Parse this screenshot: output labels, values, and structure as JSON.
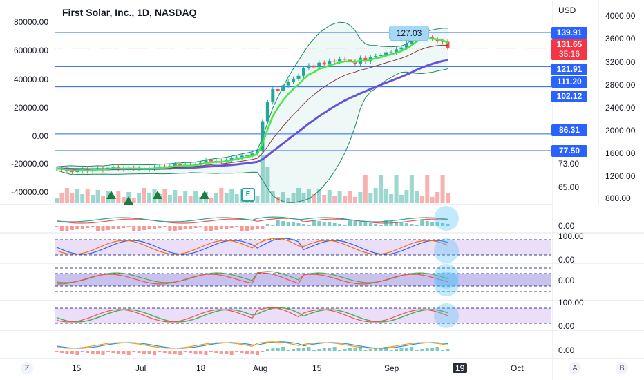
{
  "header": {
    "title": "First Solar, Inc., 1D, NASDAQ",
    "currency": "USD"
  },
  "axes": {
    "volume_axis": [
      "80000.00",
      "60000.00",
      "40000.00",
      "20000.00",
      "0.00",
      "-20000.00",
      "-40000.00"
    ],
    "secondary_axis": [
      "4000.00",
      "3600.00",
      "3200.00",
      "2800.00",
      "2400.00",
      "2000.00",
      "1600.00",
      "1200.00",
      "800.00"
    ],
    "indicator_labels": {
      "osc1_zero": "0.00",
      "stoch_top": "100.00",
      "stoch_zero": "0.00",
      "cci_zero": "0.00",
      "stoch2_top": "100.00",
      "stoch2_zero": "0.00",
      "macd_zero": "0.00",
      "rsi_73": "73.00",
      "rsi_65": "65.00"
    },
    "x_labels": [
      "15",
      "Jul",
      "18",
      "Aug",
      "15",
      "Sep",
      "19",
      "Oct"
    ]
  },
  "price_tags": [
    {
      "label": "139.91",
      "color": "blue"
    },
    {
      "label": "131.65",
      "color": "red",
      "sub": "35:16"
    },
    {
      "label": "121.91",
      "color": "blue"
    },
    {
      "label": "111.20",
      "color": "blue"
    },
    {
      "label": "102.12",
      "color": "blue"
    },
    {
      "label": "86.31",
      "color": "blue"
    },
    {
      "label": "77.50",
      "color": "blue"
    }
  ],
  "bubble": {
    "label": "127.03"
  },
  "earnings_marker": {
    "label": "E"
  },
  "corner_buttons": {
    "left": "Z",
    "right_a": "A",
    "right_b": "B"
  },
  "colors": {
    "up": "#26a69a",
    "down": "#ef5350",
    "hline": "#2962ff",
    "ema_fast": "#4ae64a",
    "ema_slow": "#6a52d8",
    "bb": "#1f8a5c",
    "bg_band": "#e6d6f7"
  },
  "chart_data": {
    "type": "candlestick",
    "price_levels": [
      139.91,
      121.91,
      111.2,
      102.12,
      86.31,
      77.5
    ],
    "last_price": 131.65,
    "annotated_high": 127.03,
    "closes": [
      68,
      67.5,
      66.8,
      66.2,
      67,
      67.5,
      66.5,
      67.8,
      68,
      67.2,
      68.5,
      69,
      68,
      67.6,
      68.4,
      67.8,
      68.2,
      67.5,
      67.9,
      68.5,
      69.2,
      68.6,
      69.4,
      70.2,
      69.5,
      70,
      69.3,
      70.5,
      71,
      72.5,
      71.8,
      72,
      71.5,
      72.8,
      73.5,
      74,
      74.8,
      75,
      76,
      77.5,
      93,
      103,
      110,
      109,
      112,
      114,
      115.5,
      117,
      121,
      122.5,
      121.5,
      124,
      123,
      125,
      124.5,
      126,
      125.5,
      124.8,
      123.5,
      126.5,
      124.5,
      127,
      127.5,
      128,
      129.5,
      129.5,
      131,
      132,
      134,
      137,
      139,
      138.5,
      137.5,
      136.5,
      135.5,
      135,
      131.65
    ]
  }
}
